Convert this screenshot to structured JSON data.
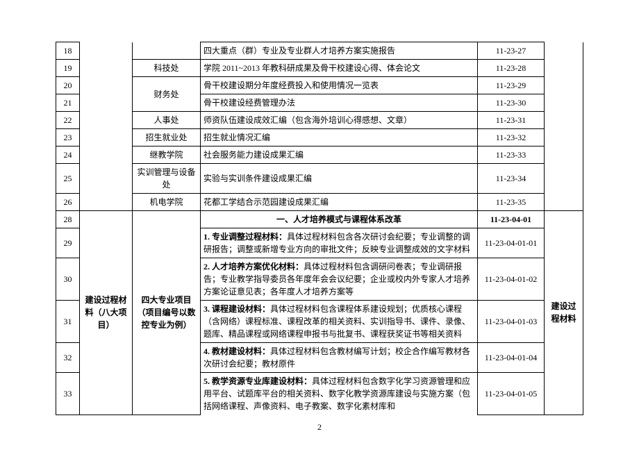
{
  "rows": [
    {
      "n": "18",
      "b": "",
      "c": "",
      "d": "四大重点（群）专业及专业群人才培养方案实施报告",
      "e": "11-23-27"
    },
    {
      "n": "19",
      "b": "",
      "c": "科技处",
      "d": "学院 2011~2013 年教科研成果及骨干校建设心得、体会论文",
      "e": "11-23-28"
    },
    {
      "n": "20",
      "b": "",
      "c": "",
      "d": "骨干校建设期分年度经费投入和使用情况一览表",
      "e": "11-23-29"
    },
    {
      "n": "21",
      "b": "",
      "c": "",
      "d": "骨干校建设经费管理办法",
      "e": "11-23-30"
    },
    {
      "n": "22",
      "b": "",
      "c": "人事处",
      "d": "师资队伍建设成效汇编（包含海外培训心得感想、文章）",
      "e": "11-23-31"
    },
    {
      "n": "23",
      "b": "",
      "c": "招生就业处",
      "d": "招生就业情况汇编",
      "e": "11-23-32"
    },
    {
      "n": "24",
      "b": "",
      "c": "继教学院",
      "d": "社会服务能力建设成果汇编",
      "e": "11-23-33"
    },
    {
      "n": "25",
      "b": "",
      "c": "实训管理与设备处",
      "d": "实验与实训条件建设成果汇编",
      "e": "11-23-34"
    },
    {
      "n": "26",
      "b": "",
      "c": "机电学院",
      "d": "花都工学结合示范园建设成果汇编",
      "e": "11-23-35"
    }
  ],
  "section_header": {
    "n": "28",
    "title": "一、人才培养模式与课程体系改革",
    "code": "11-23-04-01"
  },
  "detail": [
    {
      "n": "29",
      "d": "<b>1. 专业调整过程材料：</b>具体过程材料包含各次研讨会纪要；专业调整的调研报告；调整或新增专业方向的审批文件；反映专业调整成效的文字材料",
      "e": "11-23-04-01-01"
    },
    {
      "n": "30",
      "d": "<b>2. 人才培养方案优化材料：</b>具体过程材料包含调研问卷表；专业调研报告；专业教学指导委员各年度年会会议纪要；企业或校内外专家人才培养方案论证意见表；各年度人才培养方案等",
      "e": "11-23-04-01-02"
    },
    {
      "n": "31",
      "d": "<b>3. 课程建设材料：</b>具体过程材料包含课程体系建设规划；优质核心课程（含网络）课程标准、课程改革的相关资料、实训指导书、课件、录像、题库、精品课程或网络课程申报书与批复书、课程获奖证书等相关资料",
      "e": "11-23-04-01-03"
    },
    {
      "n": "32",
      "d": "<b>4. 教材建设材料：</b>具体过程材料包含教材编写计划；校企合作编写教材各次研讨会纪要；教材原件",
      "e": "11-23-04-01-04"
    },
    {
      "n": "33",
      "d": "<b>5. 教学资源专业库建设材料：</b>具体过程材料包含数字化学习资源管理和应用平台、试题库平台的相关资料、数字化教学资源库建设与实施方案（包括网络课程、声像资料、电子教案、数字化素材库和",
      "e": "11-23-04-01-05"
    }
  ],
  "group_b": "建设过程材料（八大项目）",
  "group_c": "四大专业项目（项目编号以数控专业为例）",
  "group_f": "建设过程材料",
  "merged_c_fin": "财务处",
  "page_number": "2"
}
